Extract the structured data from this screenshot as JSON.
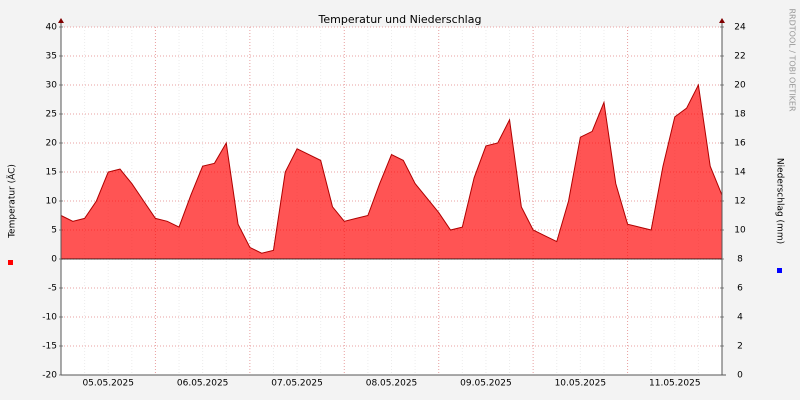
{
  "chart_data": {
    "type": "area",
    "title": "Temperatur und Niederschlag",
    "ylabel": "Temperatur (ÄC)",
    "y2label": "Niederschlag (mm)",
    "watermark": "RRDTOOL / TOBI OETIKER",
    "categories": [
      null,
      null,
      null,
      null,
      "05.05.2025",
      null,
      null,
      null,
      null,
      null,
      null,
      null,
      "06.05.2025",
      null,
      null,
      null,
      null,
      null,
      null,
      null,
      "07.05.2025",
      null,
      null,
      null,
      null,
      null,
      null,
      null,
      "08.05.2025",
      null,
      null,
      null,
      null,
      null,
      null,
      null,
      "09.05.2025",
      null,
      null,
      null,
      null,
      null,
      null,
      null,
      "10.05.2025",
      null,
      null,
      null,
      null,
      null,
      null,
      null,
      "11.05.2025",
      null,
      null,
      null,
      null
    ],
    "series": [
      {
        "color": "#ff0000",
        "values": [
          7.5,
          6.5,
          7,
          10,
          15,
          15.5,
          13,
          10,
          7,
          6.5,
          5.5,
          11,
          16,
          16.5,
          20,
          6,
          2,
          1,
          1.5,
          15,
          19,
          18,
          17,
          9,
          6.5,
          7,
          7.5,
          13,
          18,
          17,
          13,
          10.5,
          8,
          5,
          5.5,
          14,
          19.5,
          20,
          24,
          9,
          5,
          4,
          3,
          10,
          21,
          22,
          27,
          13,
          6,
          5.5,
          5,
          16,
          24.5,
          26,
          30,
          16,
          11
        ]
      }
    ],
    "y2_color": "#0000ff",
    "ylim": [
      -20,
      40
    ],
    "yticks": [
      -20,
      -15,
      -10,
      -5,
      0,
      5,
      10,
      15,
      20,
      25,
      30,
      35,
      40
    ],
    "y2lim": [
      0,
      24
    ],
    "y2ticks": [
      0,
      2,
      4,
      6,
      8,
      10,
      12,
      14,
      16,
      18,
      20,
      22,
      24
    ],
    "grid": true
  }
}
